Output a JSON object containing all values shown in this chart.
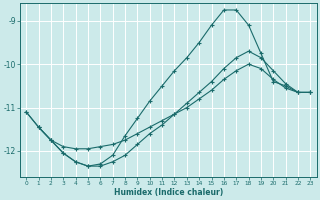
{
  "xlabel": "Humidex (Indice chaleur)",
  "bg_color": "#cceaea",
  "grid_color": "#ffffff",
  "line_color": "#1a6b6b",
  "xlim": [
    -0.5,
    23.5
  ],
  "ylim": [
    -12.6,
    -8.6
  ],
  "yticks": [
    -12,
    -11,
    -10,
    -9
  ],
  "xticks": [
    0,
    1,
    2,
    3,
    4,
    5,
    6,
    7,
    8,
    9,
    10,
    11,
    12,
    13,
    14,
    15,
    16,
    17,
    18,
    19,
    20,
    21,
    22,
    23
  ],
  "line1_x": [
    0,
    1,
    2,
    3,
    4,
    5,
    6,
    7,
    8,
    9,
    10,
    11,
    12,
    13,
    14,
    15,
    16,
    17,
    18,
    19,
    20,
    21,
    22,
    23
  ],
  "line1_y": [
    -11.1,
    -11.45,
    -11.75,
    -12.05,
    -12.25,
    -12.35,
    -12.35,
    -12.25,
    -12.1,
    -11.85,
    -11.6,
    -11.4,
    -11.15,
    -10.9,
    -10.65,
    -10.4,
    -10.1,
    -9.85,
    -9.7,
    -9.85,
    -10.15,
    -10.45,
    -10.65,
    -10.65
  ],
  "line2_x": [
    1,
    2,
    3,
    4,
    5,
    6,
    7,
    8,
    9,
    10,
    11,
    12,
    13,
    14,
    15,
    16,
    17,
    18,
    19,
    20,
    21,
    22,
    23
  ],
  "line2_y": [
    -11.45,
    -11.75,
    -12.05,
    -12.25,
    -12.35,
    -12.3,
    -12.1,
    -11.65,
    -11.25,
    -10.85,
    -10.5,
    -10.15,
    -9.85,
    -9.5,
    -9.1,
    -8.75,
    -8.75,
    -9.1,
    -9.75,
    -10.4,
    -10.5,
    -10.65,
    -10.65
  ],
  "line3_x": [
    0,
    1,
    2,
    3,
    4,
    5,
    6,
    7,
    8,
    9,
    10,
    11,
    12,
    13,
    14,
    15,
    16,
    17,
    18,
    19,
    20,
    21,
    22,
    23
  ],
  "line3_y": [
    -11.1,
    -11.45,
    -11.75,
    -11.9,
    -11.95,
    -11.95,
    -11.9,
    -11.85,
    -11.75,
    -11.6,
    -11.45,
    -11.3,
    -11.15,
    -11.0,
    -10.8,
    -10.6,
    -10.35,
    -10.15,
    -10.0,
    -10.1,
    -10.35,
    -10.55,
    -10.65,
    -10.65
  ]
}
